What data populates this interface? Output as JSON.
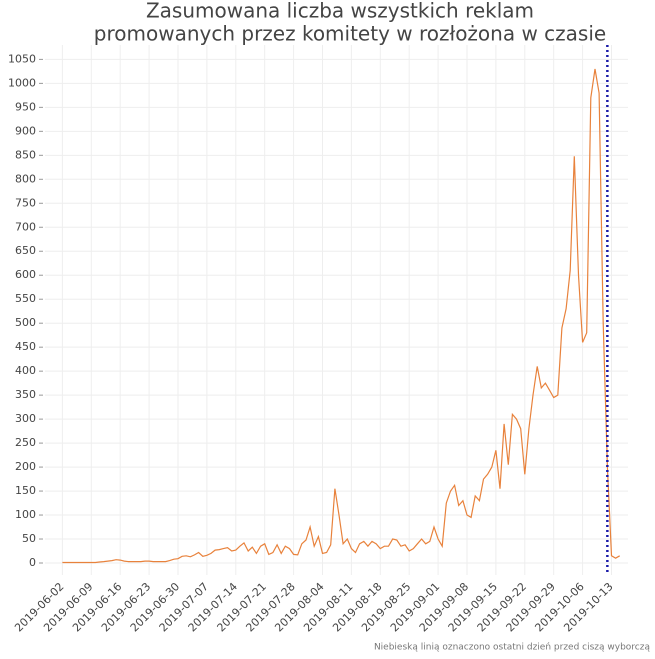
{
  "chart_data": {
    "type": "line",
    "title": "Zasumowana liczba wszystkich reklam",
    "subtitle": "promowanych przez komitety w rozłożona w czasie",
    "annotation": "Niebieską linią oznaczono ostatni dzień przed ciszą wyborczą",
    "x": [
      "2019-06-02",
      "2019-06-03",
      "2019-06-04",
      "2019-06-05",
      "2019-06-06",
      "2019-06-07",
      "2019-06-08",
      "2019-06-09",
      "2019-06-10",
      "2019-06-11",
      "2019-06-12",
      "2019-06-13",
      "2019-06-14",
      "2019-06-15",
      "2019-06-16",
      "2019-06-17",
      "2019-06-18",
      "2019-06-19",
      "2019-06-20",
      "2019-06-21",
      "2019-06-22",
      "2019-06-23",
      "2019-06-24",
      "2019-06-25",
      "2019-06-26",
      "2019-06-27",
      "2019-06-28",
      "2019-06-29",
      "2019-06-30",
      "2019-07-01",
      "2019-07-02",
      "2019-07-03",
      "2019-07-04",
      "2019-07-05",
      "2019-07-06",
      "2019-07-07",
      "2019-07-08",
      "2019-07-09",
      "2019-07-10",
      "2019-07-11",
      "2019-07-12",
      "2019-07-13",
      "2019-07-14",
      "2019-07-15",
      "2019-07-16",
      "2019-07-17",
      "2019-07-18",
      "2019-07-19",
      "2019-07-20",
      "2019-07-21",
      "2019-07-22",
      "2019-07-23",
      "2019-07-24",
      "2019-07-25",
      "2019-07-26",
      "2019-07-27",
      "2019-07-28",
      "2019-07-29",
      "2019-07-30",
      "2019-07-31",
      "2019-08-01",
      "2019-08-02",
      "2019-08-03",
      "2019-08-04",
      "2019-08-05",
      "2019-08-06",
      "2019-08-07",
      "2019-08-08",
      "2019-08-09",
      "2019-08-10",
      "2019-08-11",
      "2019-08-12",
      "2019-08-13",
      "2019-08-14",
      "2019-08-15",
      "2019-08-16",
      "2019-08-17",
      "2019-08-18",
      "2019-08-19",
      "2019-08-20",
      "2019-08-21",
      "2019-08-22",
      "2019-08-23",
      "2019-08-24",
      "2019-08-25",
      "2019-08-26",
      "2019-08-27",
      "2019-08-28",
      "2019-08-29",
      "2019-08-30",
      "2019-08-31",
      "2019-09-01",
      "2019-09-02",
      "2019-09-03",
      "2019-09-04",
      "2019-09-05",
      "2019-09-06",
      "2019-09-07",
      "2019-09-08",
      "2019-09-09",
      "2019-09-10",
      "2019-09-11",
      "2019-09-12",
      "2019-09-13",
      "2019-09-14",
      "2019-09-15",
      "2019-09-16",
      "2019-09-17",
      "2019-09-18",
      "2019-09-19",
      "2019-09-20",
      "2019-09-21",
      "2019-09-22",
      "2019-09-23",
      "2019-09-24",
      "2019-09-25",
      "2019-09-26",
      "2019-09-27",
      "2019-09-28",
      "2019-09-29",
      "2019-09-30",
      "2019-10-01",
      "2019-10-02",
      "2019-10-03",
      "2019-10-04",
      "2019-10-05",
      "2019-10-06",
      "2019-10-07",
      "2019-10-08",
      "2019-10-09",
      "2019-10-10",
      "2019-10-11",
      "2019-10-12",
      "2019-10-13",
      "2019-10-14",
      "2019-10-15"
    ],
    "series": [
      {
        "color": "#e8823c",
        "values": [
          1,
          1,
          1,
          1,
          1,
          1,
          1,
          1,
          1,
          2,
          3,
          4,
          5,
          7,
          6,
          4,
          3,
          3,
          3,
          3,
          4,
          4,
          3,
          3,
          3,
          3,
          5,
          8,
          9,
          14,
          15,
          13,
          17,
          22,
          14,
          16,
          20,
          27,
          28,
          30,
          32,
          25,
          27,
          35,
          42,
          25,
          33,
          20,
          35,
          40,
          18,
          22,
          38,
          20,
          35,
          30,
          18,
          17,
          40,
          48,
          75,
          35,
          55,
          20,
          22,
          38,
          155,
          100,
          40,
          50,
          30,
          22,
          40,
          45,
          35,
          45,
          40,
          30,
          35,
          35,
          50,
          48,
          35,
          38,
          25,
          30,
          40,
          50,
          40,
          45,
          75,
          50,
          35,
          125,
          150,
          162,
          120,
          130,
          100,
          95,
          140,
          130,
          175,
          185,
          200,
          235,
          155,
          290,
          205,
          310,
          300,
          280,
          185,
          280,
          350,
          410,
          365,
          375,
          360,
          345,
          350,
          490,
          530,
          610,
          848,
          600,
          460,
          480,
          970,
          1030,
          980,
          500,
          200,
          15,
          10,
          15
        ]
      }
    ],
    "xlim": [
      "2019-05-30",
      "2019-10-17"
    ],
    "xticks": [
      "2019-06-02",
      "2019-06-09",
      "2019-06-16",
      "2019-06-23",
      "2019-06-30",
      "2019-07-07",
      "2019-07-14",
      "2019-07-21",
      "2019-07-28",
      "2019-08-04",
      "2019-08-11",
      "2019-08-18",
      "2019-08-25",
      "2019-09-01",
      "2019-09-08",
      "2019-09-15",
      "2019-09-22",
      "2019-09-29",
      "2019-10-06",
      "2019-10-13"
    ],
    "ylim": [
      -25,
      1080
    ],
    "yticks": [
      0,
      50,
      100,
      150,
      200,
      250,
      300,
      350,
      400,
      450,
      500,
      550,
      600,
      650,
      700,
      750,
      800,
      850,
      900,
      950,
      1000,
      1050
    ],
    "grid": true,
    "vline": {
      "x": "2019-10-12",
      "color": "#1a1aa8"
    }
  }
}
